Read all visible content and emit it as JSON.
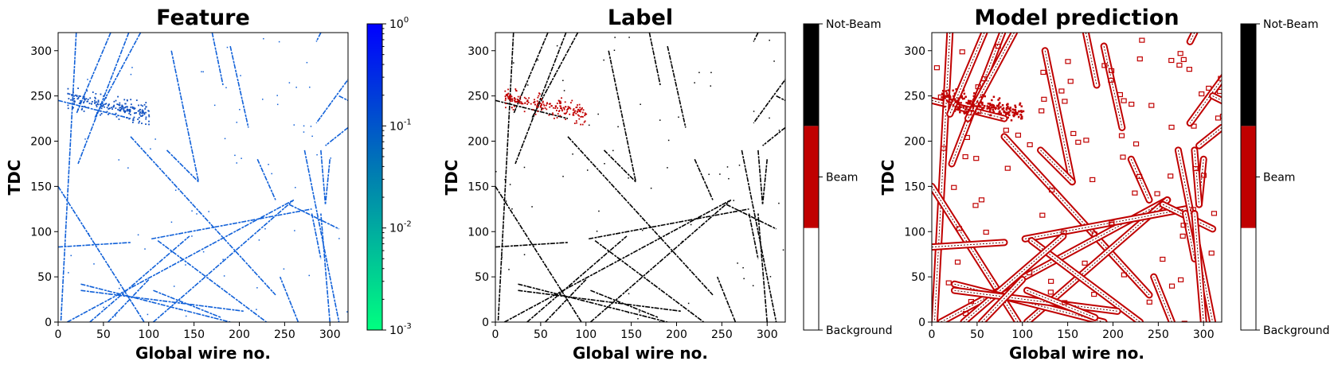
{
  "figure": {
    "panels": [
      {
        "id": "feature",
        "title": "Feature",
        "xlabel": "Global wire no.",
        "ylabel": "TDC"
      },
      {
        "id": "label",
        "title": "Label",
        "xlabel": "Global wire no.",
        "ylabel": "TDC"
      },
      {
        "id": "prediction",
        "title": "Model prediction",
        "xlabel": "Global wire no.",
        "ylabel": "TDC"
      }
    ],
    "colorbars": {
      "feature": {
        "scale": "log",
        "range": [
          0.001,
          1
        ],
        "ticks": [
          "10^-3",
          "10^-2",
          "10^-1",
          "10^0"
        ],
        "colors": {
          "low": "#00ff80",
          "high": "#0000ff"
        }
      },
      "classes": {
        "labels": [
          "Background",
          "Beam",
          "Not-Beam"
        ],
        "colors": [
          "#ffffff",
          "#c00000",
          "#000000"
        ]
      }
    }
  },
  "chart_data": [
    {
      "type": "heatmap",
      "title": "Feature",
      "xlabel": "Global wire no.",
      "ylabel": "TDC",
      "xlim": [
        0,
        320
      ],
      "ylim": [
        0,
        320
      ],
      "xticks": [
        0,
        50,
        100,
        150,
        200,
        250,
        300
      ],
      "yticks": [
        0,
        50,
        100,
        150,
        200,
        250,
        300
      ],
      "colorscale": "log, 1e-3 (green) to 1 (blue)",
      "tracks": [
        {
          "from": [
            0,
            245
          ],
          "to": [
            80,
            225
          ]
        },
        {
          "from": [
            20,
            320
          ],
          "to": [
            3,
            0
          ]
        },
        {
          "from": [
            58,
            320
          ],
          "to": [
            20,
            230
          ]
        },
        {
          "from": [
            78,
            320
          ],
          "to": [
            22,
            175
          ]
        },
        {
          "from": [
            91,
            320
          ],
          "to": [
            40,
            225
          ]
        },
        {
          "from": [
            125,
            300
          ],
          "to": [
            155,
            155
          ]
        },
        {
          "from": [
            170,
            320
          ],
          "to": [
            182,
            262
          ]
        },
        {
          "from": [
            325,
            275
          ],
          "to": [
            285,
            220
          ]
        },
        {
          "from": [
            320,
            215
          ],
          "to": [
            295,
            195
          ]
        },
        {
          "from": [
            190,
            305
          ],
          "to": [
            210,
            215
          ]
        },
        {
          "from": [
            0,
            150
          ],
          "to": [
            95,
            0
          ]
        },
        {
          "from": [
            80,
            205
          ],
          "to": [
            240,
            30
          ]
        },
        {
          "from": [
            10,
            0
          ],
          "to": [
            260,
            135
          ]
        },
        {
          "from": [
            105,
            0
          ],
          "to": [
            260,
            135
          ]
        },
        {
          "from": [
            103,
            92
          ],
          "to": [
            280,
            125
          ]
        },
        {
          "from": [
            0,
            83
          ],
          "to": [
            80,
            88
          ]
        },
        {
          "from": [
            255,
            130
          ],
          "to": [
            310,
            103
          ]
        },
        {
          "from": [
            120,
            190
          ],
          "to": [
            155,
            155
          ]
        },
        {
          "from": [
            110,
            90
          ],
          "to": [
            230,
            0
          ]
        },
        {
          "from": [
            35,
            0
          ],
          "to": [
            145,
            95
          ]
        },
        {
          "from": [
            310,
            250
          ],
          "to": [
            330,
            240
          ]
        },
        {
          "from": [
            25,
            42
          ],
          "to": [
            190,
            0
          ]
        },
        {
          "from": [
            25,
            35
          ],
          "to": [
            205,
            12
          ]
        },
        {
          "from": [
            55,
            0
          ],
          "to": [
            100,
            47
          ]
        },
        {
          "from": [
            105,
            35
          ],
          "to": [
            180,
            5
          ]
        },
        {
          "from": [
            265,
            0
          ],
          "to": [
            245,
            50
          ]
        },
        {
          "from": [
            280,
            120
          ],
          "to": [
            290,
            70
          ]
        },
        {
          "from": [
            272,
            190
          ],
          "to": [
            310,
            0
          ]
        },
        {
          "from": [
            300,
            180
          ],
          "to": [
            295,
            130
          ]
        },
        {
          "from": [
            290,
            190
          ],
          "to": [
            295,
            130
          ]
        },
        {
          "from": [
            300,
            0
          ],
          "to": [
            290,
            120
          ]
        },
        {
          "from": [
            220,
            180
          ],
          "to": [
            240,
            135
          ]
        },
        {
          "from": [
            290,
            320
          ],
          "to": [
            285,
            310
          ]
        }
      ],
      "beam_cluster": {
        "center": [
          45,
          240
        ],
        "extent": [
          [
            10,
            100
          ],
          [
            220,
            260
          ]
        ]
      }
    },
    {
      "type": "heatmap",
      "title": "Label",
      "xlabel": "Global wire no.",
      "ylabel": "TDC",
      "xlim": [
        0,
        320
      ],
      "ylim": [
        0,
        320
      ],
      "xticks": [
        0,
        50,
        100,
        150,
        200,
        250,
        300
      ],
      "yticks": [
        0,
        50,
        100,
        150,
        200,
        250,
        300
      ],
      "classes": [
        "Background",
        "Beam",
        "Not-Beam"
      ],
      "beam_region": {
        "center": [
          45,
          240
        ]
      }
    },
    {
      "type": "heatmap",
      "title": "Model prediction",
      "xlabel": "Global wire no.",
      "ylabel": "TDC",
      "xlim": [
        0,
        320
      ],
      "ylim": [
        0,
        320
      ],
      "xticks": [
        0,
        50,
        100,
        150,
        200,
        250,
        300
      ],
      "yticks": [
        0,
        50,
        100,
        150,
        200,
        250,
        300
      ],
      "classes": [
        "Background",
        "Beam",
        "Not-Beam"
      ]
    }
  ]
}
